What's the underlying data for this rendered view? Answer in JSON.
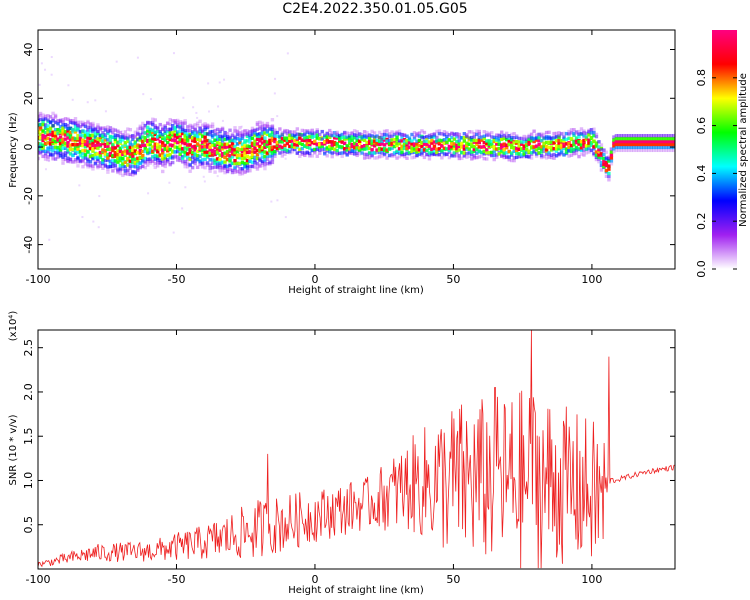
{
  "title": "C2E4.2022.350.01.05.G05",
  "chart_data": [
    {
      "type": "heatmap",
      "xlabel": "Height of straight line (km)",
      "ylabel": "Frequency (Hz)",
      "xlim": [
        -100,
        130
      ],
      "ylim": [
        -50,
        48
      ],
      "xticks": [
        "-100",
        "-50",
        "0",
        "50",
        "100"
      ],
      "yticks": [
        "-40",
        "-20",
        "0",
        "20",
        "40"
      ],
      "colorbar": {
        "label": "Normalized spectral amplitude",
        "range": [
          0.0,
          1.0
        ],
        "ticks": [
          "0.0",
          "0.2",
          "0.4",
          "0.6",
          "0.8"
        ],
        "colors": [
          "#ffffff",
          "#a020f0",
          "#0000ff",
          "#00ffff",
          "#00ff00",
          "#ffff00",
          "#ff0000",
          "#ff0080"
        ]
      },
      "ridge": {
        "x": [
          -100,
          -90,
          -80,
          -70,
          -65,
          -60,
          -55,
          -50,
          -45,
          -40,
          -35,
          -30,
          -25,
          -20,
          -10,
          0,
          20,
          40,
          60,
          75,
          80,
          90,
          97,
          100,
          103,
          106,
          108,
          130
        ],
        "y": [
          5,
          3,
          1,
          -2,
          -3,
          3,
          0,
          3,
          0,
          1,
          -1,
          -2,
          -2,
          1,
          2,
          2,
          1,
          1,
          1,
          0,
          1,
          1,
          2,
          3,
          -3,
          -9,
          2,
          2
        ]
      }
    },
    {
      "type": "line",
      "xlabel": "Height of straight line (km)",
      "ylabel": "SNR (10 * v/v)",
      "y_multiplier": "(x10⁴)",
      "xlim": [
        -100,
        130
      ],
      "ylim": [
        0,
        2.7
      ],
      "xticks": [
        "-100",
        "-50",
        "0",
        "50",
        "100"
      ],
      "yticks": [
        "0.5",
        "1.0",
        "1.5",
        "2.0",
        "2.5"
      ],
      "color": "#ee2020",
      "envelope": {
        "x": [
          -100,
          -80,
          -60,
          -40,
          -20,
          0,
          20,
          35,
          50,
          70,
          80,
          90,
          100,
          104,
          106,
          108,
          120,
          130
        ],
        "mean": [
          0.05,
          0.18,
          0.2,
          0.3,
          0.45,
          0.6,
          0.75,
          0.95,
          1.0,
          1.0,
          1.0,
          0.95,
          0.85,
          0.8,
          1.0,
          1.0,
          1.1,
          1.15
        ],
        "amp": [
          0.03,
          0.1,
          0.12,
          0.2,
          0.35,
          0.3,
          0.3,
          0.55,
          0.9,
          1.0,
          1.1,
          0.9,
          0.85,
          0.9,
          0.05,
          0.03,
          0.03,
          0.03
        ]
      },
      "peaks": [
        {
          "x": -17,
          "y": 1.3
        },
        {
          "x": 65,
          "y": 2.05
        },
        {
          "x": 78,
          "y": 2.7
        },
        {
          "x": 106,
          "y": 2.4
        }
      ]
    }
  ]
}
